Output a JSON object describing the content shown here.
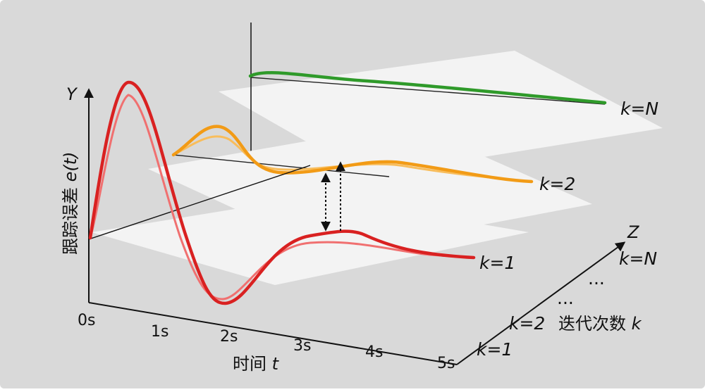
{
  "colors": {
    "background": "#d9d9d9",
    "plane": "#f3f3f3",
    "k1_curve": "#d92121",
    "k1_curve_light": "#f07070",
    "k2_curve": "#f29b16",
    "k2_curve_light": "#f8bd5c",
    "kN_curve": "#2f9a2a"
  },
  "axes": {
    "y_symbol": "Y",
    "y_title_text": "跟踪误差 ",
    "y_title_var": "e(t)",
    "x_title_text": "时间 ",
    "x_title_var": "t",
    "z_symbol": "Z",
    "z_title_text": "迭代次数 ",
    "z_title_var": "k",
    "x_ticks": [
      "0s",
      "1s",
      "2s",
      "3s",
      "4s",
      "5s"
    ]
  },
  "z_ticks": {
    "k1": "k=1",
    "k2": "k=2",
    "ellipsis_low": "...",
    "ellipsis_high": "...",
    "kN": "k=N"
  },
  "curve_labels": {
    "k1": "k=1",
    "k2": "k=2",
    "kN": "k=N"
  }
}
